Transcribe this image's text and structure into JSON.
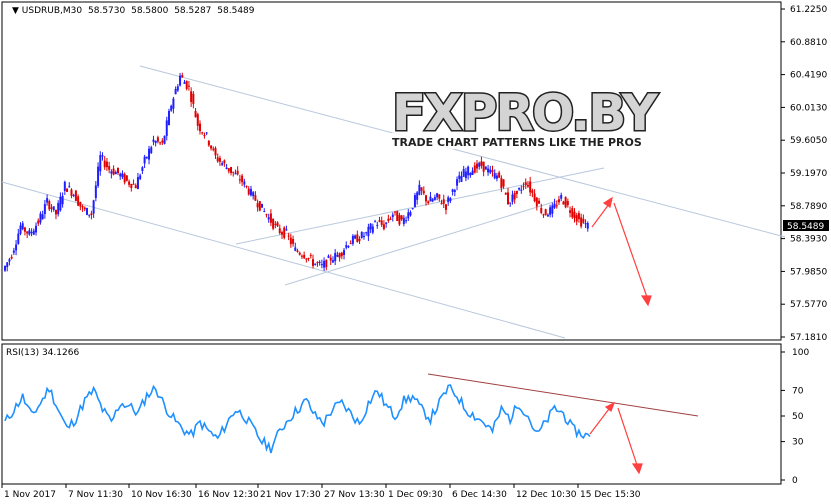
{
  "header": {
    "symbol": "USDRUB,M30",
    "open": "58.5730",
    "high": "58.5800",
    "low": "58.5287",
    "close": "58.5489"
  },
  "logo": {
    "brand": "FXPRO.BY",
    "tagline": "TRADE CHART PATTERNS LIKE THE PROS"
  },
  "price_axis": {
    "ticks": [
      "61.2250",
      "60.8810",
      "60.4190",
      "60.0130",
      "59.6050",
      "59.1970",
      "58.7890",
      "58.3930",
      "57.9850",
      "57.5770",
      "57.1810"
    ],
    "current": "58.5489"
  },
  "rsi": {
    "label": "RSI(13) 34.1266",
    "ticks": [
      "100",
      "70",
      "50",
      "30",
      "0"
    ]
  },
  "time_axis": {
    "ticks": [
      "1 Nov 2017",
      "7 Nov 11:30",
      "10 Nov 16:30",
      "16 Nov 12:30",
      "21 Nov 17:30",
      "27 Nov 13:30",
      "1 Dec 09:30",
      "6 Dec 14:30",
      "12 Dec 10:30",
      "15 Dec 15:30"
    ]
  },
  "colors": {
    "up": "#1e1eff",
    "down": "#e00000",
    "trendline": "#b8c8dc",
    "rsi_line": "#1e90ff",
    "rsi_trend": "#a04040",
    "arrow": "#ff4040",
    "current_badge": "#000000"
  },
  "chart_data": {
    "type": "line",
    "price_series_close": [
      58.0,
      58.2,
      58.55,
      58.45,
      58.6,
      58.85,
      58.7,
      59.05,
      58.95,
      58.75,
      58.7,
      59.4,
      59.25,
      59.2,
      59.1,
      59.05,
      59.35,
      59.6,
      59.55,
      60.05,
      60.4,
      60.25,
      59.8,
      59.65,
      59.4,
      59.3,
      59.2,
      59.1,
      58.95,
      58.8,
      58.65,
      58.5,
      58.45,
      58.25,
      58.2,
      58.1,
      58.05,
      58.15,
      58.2,
      58.35,
      58.4,
      58.45,
      58.6,
      58.55,
      58.7,
      58.6,
      58.75,
      59.0,
      58.85,
      58.9,
      58.8,
      59.05,
      59.2,
      59.25,
      59.3,
      59.2,
      59.15,
      58.85,
      58.95,
      59.1,
      58.9,
      58.7,
      58.75,
      58.9,
      58.75,
      58.62,
      58.55
    ],
    "rsi_series": [
      45,
      55,
      65,
      50,
      60,
      72,
      55,
      40,
      48,
      62,
      70,
      55,
      45,
      60,
      58,
      52,
      66,
      72,
      58,
      48,
      40,
      35,
      45,
      38,
      32,
      44,
      55,
      50,
      40,
      30,
      25,
      38,
      48,
      55,
      62,
      50,
      45,
      56,
      60,
      52,
      44,
      60,
      70,
      58,
      50,
      62,
      65,
      55,
      48,
      60,
      72,
      66,
      55,
      50,
      45,
      38,
      55,
      48,
      60,
      50,
      35,
      45,
      56,
      52,
      40,
      36,
      34
    ],
    "price_range": [
      57.181,
      61.225
    ],
    "rsi_range": [
      0,
      100
    ]
  }
}
